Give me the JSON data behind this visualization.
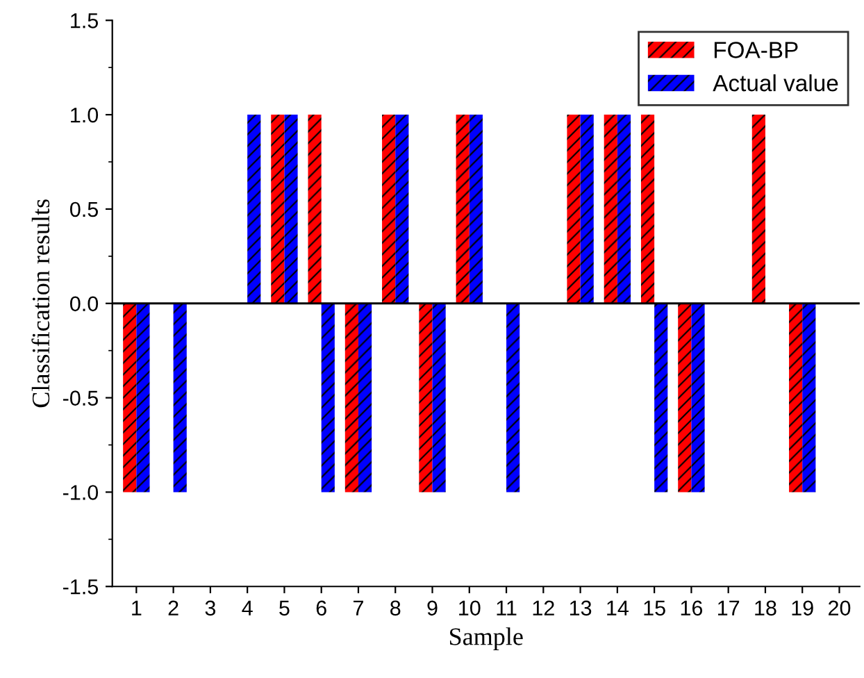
{
  "chart_data": {
    "type": "bar",
    "xlabel": "Sample",
    "ylabel": "Classification results",
    "categories": [
      "1",
      "2",
      "3",
      "4",
      "5",
      "6",
      "7",
      "8",
      "9",
      "10",
      "11",
      "12",
      "13",
      "14",
      "15",
      "16",
      "17",
      "18",
      "19",
      "20"
    ],
    "series": [
      {
        "name": "FOA-BP",
        "color": "#ff0000",
        "values": [
          -1,
          0,
          0,
          0,
          1,
          1,
          -1,
          1,
          -1,
          1,
          0,
          0,
          1,
          1,
          1,
          -1,
          0,
          1,
          -1,
          0
        ]
      },
      {
        "name": "Actual value",
        "color": "#0000ff",
        "values": [
          -1,
          -1,
          0,
          1,
          1,
          -1,
          -1,
          1,
          -1,
          1,
          -1,
          0,
          1,
          1,
          -1,
          -1,
          0,
          0,
          -1,
          0
        ]
      }
    ],
    "ylim": [
      -1.5,
      1.5
    ],
    "yticks": [
      -1.5,
      {
        "value": -1,
        "label": "-1.0"
      },
      -0.5,
      {
        "value": 0,
        "label": "0.0"
      },
      0.5,
      {
        "value": 1,
        "label": "1.0"
      },
      1.5
    ],
    "ref_lines": [
      {
        "axis": "y",
        "value": 0,
        "color": "#000000"
      }
    ],
    "legend": "top right",
    "grid": false
  }
}
